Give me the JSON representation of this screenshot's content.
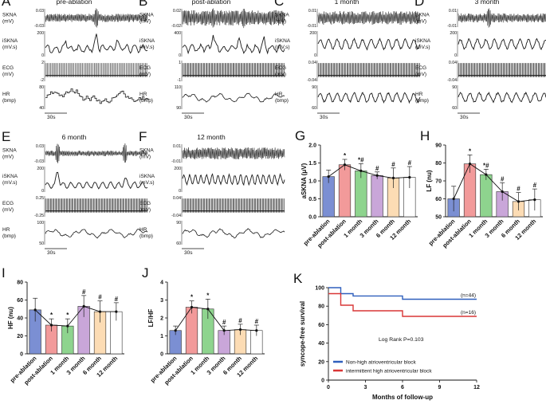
{
  "chart_data": [
    {
      "type": "line",
      "panel": "A",
      "title": "pre-ablation",
      "tracks": [
        {
          "name": "SKNA",
          "label_lines": [
            "SKNA",
            "(mV)"
          ],
          "yticks": [
            "0.03",
            "-0.03"
          ],
          "signal": "burst-noise",
          "noise": 0.45,
          "bursts": [
            0.5
          ]
        },
        {
          "name": "iSKNA",
          "label_lines": [
            "iSKNA",
            "(mV.s)"
          ],
          "yticks": [
            "200",
            "0"
          ],
          "signal": "integrated",
          "noise": 0.3,
          "bursts": [
            0.5,
            0.2,
            0.7
          ]
        },
        {
          "name": "ECG",
          "label_lines": [
            "ECG",
            "(mV)"
          ],
          "yticks": [
            "2",
            "-2"
          ],
          "signal": "ecg",
          "beats": 70
        },
        {
          "name": "HR",
          "label_lines": [
            "HR",
            "(bmp)"
          ],
          "yticks": [
            "80",
            "40"
          ],
          "signal": "hr-steps"
        }
      ],
      "scalebar": "30s"
    },
    {
      "type": "line",
      "panel": "B",
      "title": "post-ablation",
      "tracks": [
        {
          "name": "SKNA",
          "label_lines": [
            "SKNA",
            "(mV)"
          ],
          "yticks": [
            "0.02",
            "-0.02"
          ],
          "signal": "burst-noise",
          "noise": 0.85,
          "bursts": [
            0.3,
            0.6
          ]
        },
        {
          "name": "iSKNA",
          "label_lines": [
            "iSKNA",
            "(mV.s)"
          ],
          "yticks": [
            "400",
            "0"
          ],
          "signal": "integrated",
          "noise": 0.35,
          "bursts": [
            0.3,
            0.55,
            0.8
          ]
        },
        {
          "name": "ECG",
          "label_lines": [
            "ECG",
            "(mV)"
          ],
          "yticks": [
            "1",
            "-1"
          ],
          "signal": "ecg",
          "beats": 90
        },
        {
          "name": "HR",
          "label_lines": [
            "HR",
            "(bmp)"
          ],
          "yticks": [
            "110",
            "90"
          ],
          "signal": "hr-wave"
        }
      ],
      "scalebar": "30s"
    },
    {
      "type": "line",
      "panel": "C",
      "title": "1 month",
      "tracks": [
        {
          "name": "SKNA",
          "label_lines": [
            "SKNA",
            "(mV)"
          ],
          "yticks": [
            "0.01",
            "-0.01"
          ],
          "signal": "burst-noise",
          "noise": 0.75,
          "bursts": []
        },
        {
          "name": "iSKNA",
          "label_lines": [
            "iSKNA",
            "(mV.s)"
          ],
          "yticks": [
            "200",
            "0"
          ],
          "signal": "sine",
          "cycles": 12
        },
        {
          "name": "ECG",
          "label_lines": [
            "ECG",
            "(mV)"
          ],
          "yticks": [
            "0.04",
            "-0.04"
          ],
          "signal": "ecg",
          "beats": 90
        },
        {
          "name": "HR",
          "label_lines": [
            "HR",
            "(bmp)"
          ],
          "yticks": [
            "90",
            "60"
          ],
          "signal": "sine",
          "cycles": 12
        }
      ],
      "scalebar": "30s"
    },
    {
      "type": "line",
      "panel": "D",
      "title": "3 month",
      "tracks": [
        {
          "name": "SKNA",
          "label_lines": [
            "SKNA",
            "(mV)"
          ],
          "yticks": [
            "0.01",
            "-0.01"
          ],
          "signal": "burst-noise",
          "noise": 0.5,
          "bursts": [
            0.3
          ]
        },
        {
          "name": "iSKNA",
          "label_lines": [
            "iSKNA",
            "(mV.s)"
          ],
          "yticks": [
            "200",
            "0"
          ],
          "signal": "sine",
          "cycles": 12
        },
        {
          "name": "ECG",
          "label_lines": [
            "ECG",
            "(mV)"
          ],
          "yticks": [
            "0.04",
            "-0.04"
          ],
          "signal": "ecg",
          "beats": 90
        },
        {
          "name": "HR",
          "label_lines": [
            "HR",
            "(bmp)"
          ],
          "yticks": [
            "90",
            "60"
          ],
          "signal": "sine",
          "cycles": 11
        }
      ],
      "scalebar": "30s"
    },
    {
      "type": "line",
      "panel": "E",
      "title": "6 month",
      "tracks": [
        {
          "name": "SKNA",
          "label_lines": [
            "SKNA",
            "(mV)"
          ],
          "yticks": [
            "0.03",
            "-0.03"
          ],
          "signal": "burst-noise",
          "noise": 0.3,
          "bursts": [
            0.12,
            0.78
          ]
        },
        {
          "name": "iSKNA",
          "label_lines": [
            "iSKNA",
            "(mV.s)"
          ],
          "yticks": [
            "200",
            "0"
          ],
          "signal": "integrated",
          "noise": 0.12,
          "bursts": [
            0.12,
            0.78
          ]
        },
        {
          "name": "ECG",
          "label_lines": [
            "ECG",
            "(mV)"
          ],
          "yticks": [
            "0.25",
            "-0.25"
          ],
          "signal": "ecg",
          "beats": 90
        },
        {
          "name": "HR",
          "label_lines": [
            "HR",
            "(bmp)"
          ],
          "yticks": [
            "100",
            "50"
          ],
          "signal": "hr-wave"
        }
      ],
      "scalebar": "30s"
    },
    {
      "type": "line",
      "panel": "F",
      "title": "12 month",
      "tracks": [
        {
          "name": "SKNA",
          "label_lines": [
            "SKNA",
            "(mV)"
          ],
          "yticks": [
            "0.01",
            "-0.01"
          ],
          "signal": "burst-noise",
          "noise": 0.65,
          "bursts": []
        },
        {
          "name": "iSKNA",
          "label_lines": [
            "iSKNA",
            "(mV.s)"
          ],
          "yticks": [
            "200",
            "0"
          ],
          "signal": "sine",
          "cycles": 18
        },
        {
          "name": "ECG",
          "label_lines": [
            "ECG",
            "(mV)"
          ],
          "yticks": [
            "0.04",
            "-0.04"
          ],
          "signal": "ecg",
          "beats": 90
        },
        {
          "name": "HR",
          "label_lines": [
            "HR",
            "(bmp)"
          ],
          "yticks": [
            "90",
            "60"
          ],
          "signal": "hr-wave"
        }
      ],
      "scalebar": "30s"
    },
    {
      "type": "bar",
      "panel": "G",
      "ylabel": "aSKNA (μV)",
      "ylim": [
        0,
        2.0
      ],
      "yticks": [
        0,
        0.5,
        1.0,
        1.5,
        2.0
      ],
      "categories": [
        "pre-ablation",
        "post-ablation",
        "1 month",
        "3 month",
        "6 month",
        "12 month"
      ],
      "values": [
        1.12,
        1.45,
        1.28,
        1.15,
        1.08,
        1.1
      ],
      "errors": [
        0.18,
        0.15,
        0.2,
        0.1,
        0.28,
        0.3
      ],
      "markers": [
        "",
        "*",
        "*#",
        "#",
        "#",
        "#"
      ]
    },
    {
      "type": "bar",
      "panel": "H",
      "ylabel": "LF (nu)",
      "ylim": [
        50,
        90
      ],
      "yticks": [
        50,
        60,
        70,
        80,
        90
      ],
      "categories": [
        "pre-ablation",
        "post-ablation",
        "1 month",
        "3 month",
        "6 month",
        "12 month"
      ],
      "values": [
        60,
        79.5,
        73.5,
        64,
        58.5,
        59.5
      ],
      "errors": [
        7,
        5,
        3,
        5,
        5,
        6
      ],
      "markers": [
        "",
        "*",
        "*#",
        "#",
        "#",
        "#"
      ]
    },
    {
      "type": "bar",
      "panel": "I",
      "ylabel": "HF (nu)",
      "ylim": [
        0,
        80
      ],
      "yticks": [
        0,
        20,
        40,
        60,
        80
      ],
      "categories": [
        "pre-ablation",
        "post-ablation",
        "1 month",
        "3 month",
        "6 month",
        "12 month"
      ],
      "values": [
        49,
        32,
        31,
        53,
        47,
        47
      ],
      "errors": [
        13,
        7,
        8,
        12,
        12,
        10
      ],
      "markers": [
        "",
        "*",
        "*",
        "#",
        "#",
        "#"
      ]
    },
    {
      "type": "bar",
      "panel": "J",
      "ylabel": "LF/HF",
      "ylim": [
        0,
        4
      ],
      "yticks": [
        0,
        1,
        2,
        3,
        4
      ],
      "categories": [
        "pre-ablation",
        "post-ablation",
        "1 month",
        "3 month",
        "6 month",
        "12 month"
      ],
      "values": [
        1.3,
        2.6,
        2.5,
        1.3,
        1.35,
        1.3
      ],
      "errors": [
        0.25,
        0.35,
        0.55,
        0.25,
        0.3,
        0.3
      ],
      "markers": [
        "",
        "*",
        "*",
        "#",
        "#",
        "#"
      ]
    },
    {
      "type": "line",
      "panel": "K",
      "xlabel": "Months of follow-up",
      "ylabel": "syncope-free survival",
      "xlim": [
        0,
        12
      ],
      "xticks": [
        0,
        3,
        6,
        9,
        12
      ],
      "ylim": [
        0,
        100
      ],
      "yticks": [
        0,
        20,
        40,
        60,
        80,
        100
      ],
      "series": [
        {
          "name": "Non-high atrioventricular block",
          "n_label": "(n=44)",
          "steps": [
            [
              0,
              100
            ],
            [
              1,
              93.5
            ],
            [
              2,
              91
            ],
            [
              6,
              87.5
            ],
            [
              12,
              87.5
            ]
          ]
        },
        {
          "name": "intermittent high atrioventricular block",
          "n_label": "(n=16)",
          "steps": [
            [
              0,
              93.5
            ],
            [
              1,
              81
            ],
            [
              2,
              75
            ],
            [
              6,
              69
            ],
            [
              12,
              69
            ]
          ]
        }
      ],
      "annotation": "Log Rank P=0.103"
    }
  ],
  "colors": {
    "bars": [
      "#7b8fd3",
      "#f29a9a",
      "#8ed48e",
      "#c9a6d9",
      "#fcdcb4",
      "#ffffff"
    ],
    "trace": "#1a1a1a",
    "series_blue": "#2f5fbd",
    "series_red": "#d93636"
  }
}
